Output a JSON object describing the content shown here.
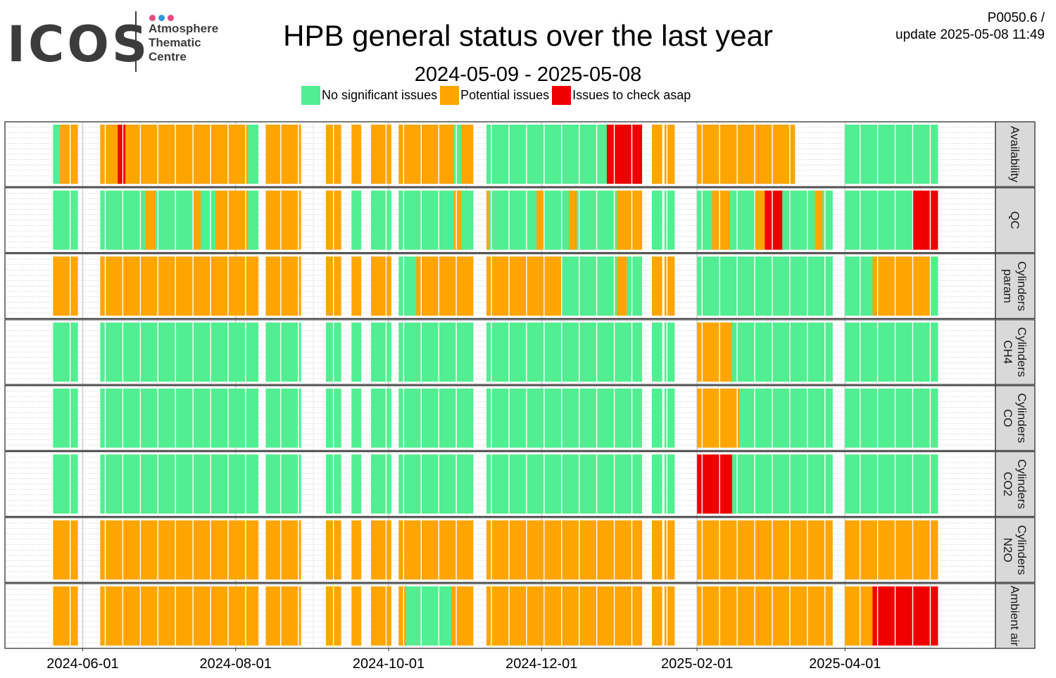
{
  "logo": {
    "wordmark": "ICOS",
    "line1": "Atmosphere",
    "line2": "Thematic",
    "line3": "Centre",
    "dot_colors": [
      "#e94a85",
      "#2d95e0",
      "#e94a85"
    ]
  },
  "header": {
    "title": "HPB general status over the last year",
    "subtitle": "2024-05-09 - 2025-05-08",
    "meta_line1": "P0050.6 /",
    "meta_line2": "update  2025-05-08 11:49"
  },
  "colors": {
    "ok": "#52ee92",
    "warn": "#ffa500",
    "bad": "#ee0000",
    "strip": "#d9d9d9"
  },
  "chart_data": {
    "type": "heatmap",
    "title": "HPB general status over the last year",
    "subtitle": "2024-05-09 - 2025-05-08",
    "date_range": [
      "2024-05-09",
      "2025-05-08"
    ],
    "x_ticks": [
      "2024-06-01",
      "2024-08-01",
      "2024-10-01",
      "2024-12-01",
      "2025-02-01",
      "2025-04-01"
    ],
    "legend": [
      {
        "label": "No significant issues",
        "color": "#52ee92"
      },
      {
        "label": "Potential issues",
        "color": "#ffa500"
      },
      {
        "label": "Issues to check asap",
        "color": "#ee0000"
      }
    ],
    "categories": [
      "Availability",
      "QC",
      "Cylinders param",
      "Cylinders CH4",
      "Cylinders CO",
      "Cylinders CO2",
      "Cylinders N2O",
      "Ambient air"
    ],
    "panel_labels": [
      [
        "Availability"
      ],
      [
        "QC"
      ],
      [
        "Cylinders",
        "param"
      ],
      [
        "Cylinders",
        "CH4"
      ],
      [
        "Cylinders",
        "CO"
      ],
      [
        "Cylinders",
        "CO2"
      ],
      [
        "Cylinders",
        "N2O"
      ],
      [
        "Ambient air"
      ]
    ],
    "status_key": {
      "G": "No significant issues",
      "O": "Potential issues",
      "R": "Issues to check asap"
    },
    "segments": {
      "Availability": [
        [
          "2024-05-20",
          "2024-05-23",
          "G"
        ],
        [
          "2024-05-23",
          "2024-05-30",
          "O"
        ],
        [
          "2024-06-08",
          "2024-06-15",
          "O"
        ],
        [
          "2024-06-15",
          "2024-06-18",
          "R"
        ],
        [
          "2024-06-18",
          "2024-06-22",
          "O"
        ],
        [
          "2024-06-22",
          "2024-07-24",
          "O"
        ],
        [
          "2024-07-24",
          "2024-08-06",
          "O"
        ],
        [
          "2024-08-06",
          "2024-08-10",
          "G"
        ],
        [
          "2024-08-13",
          "2024-08-27",
          "O"
        ],
        [
          "2024-09-06",
          "2024-09-12",
          "O"
        ],
        [
          "2024-09-16",
          "2024-09-20",
          "O"
        ],
        [
          "2024-09-24",
          "2024-09-28",
          "O"
        ],
        [
          "2024-09-28",
          "2024-10-02",
          "O"
        ],
        [
          "2024-10-05",
          "2024-10-27",
          "O"
        ],
        [
          "2024-10-27",
          "2024-10-30",
          "G"
        ],
        [
          "2024-10-30",
          "2024-11-04",
          "O"
        ],
        [
          "2024-11-09",
          "2024-11-25",
          "G"
        ],
        [
          "2024-11-25",
          "2024-12-27",
          "G"
        ],
        [
          "2024-12-27",
          "2025-01-10",
          "R"
        ],
        [
          "2025-01-14",
          "2025-01-18",
          "O"
        ],
        [
          "2025-01-19",
          "2025-01-23",
          "O"
        ],
        [
          "2025-02-01",
          "2025-03-12",
          "O"
        ],
        [
          "2025-04-01",
          "2025-05-08",
          "G"
        ]
      ],
      "QC": [
        [
          "2024-05-20",
          "2024-05-23",
          "G"
        ],
        [
          "2024-05-23",
          "2024-05-30",
          "G"
        ],
        [
          "2024-06-08",
          "2024-06-26",
          "G"
        ],
        [
          "2024-06-26",
          "2024-06-30",
          "O"
        ],
        [
          "2024-06-30",
          "2024-07-15",
          "G"
        ],
        [
          "2024-07-15",
          "2024-07-18",
          "O"
        ],
        [
          "2024-07-18",
          "2024-07-24",
          "G"
        ],
        [
          "2024-07-24",
          "2024-08-06",
          "O"
        ],
        [
          "2024-08-06",
          "2024-08-10",
          "G"
        ],
        [
          "2024-08-13",
          "2024-08-27",
          "O"
        ],
        [
          "2024-09-06",
          "2024-09-12",
          "O"
        ],
        [
          "2024-09-16",
          "2024-09-20",
          "G"
        ],
        [
          "2024-09-24",
          "2024-09-28",
          "G"
        ],
        [
          "2024-09-28",
          "2024-10-02",
          "G"
        ],
        [
          "2024-10-05",
          "2024-10-27",
          "G"
        ],
        [
          "2024-10-27",
          "2024-10-30",
          "O"
        ],
        [
          "2024-10-30",
          "2024-11-04",
          "G"
        ],
        [
          "2024-11-09",
          "2024-11-10",
          "O"
        ],
        [
          "2024-11-10",
          "2024-11-29",
          "G"
        ],
        [
          "2024-11-29",
          "2024-12-02",
          "O"
        ],
        [
          "2024-12-02",
          "2024-12-12",
          "G"
        ],
        [
          "2024-12-12",
          "2024-12-15",
          "O"
        ],
        [
          "2024-12-15",
          "2024-12-31",
          "G"
        ],
        [
          "2024-12-31",
          "2025-01-10",
          "O"
        ],
        [
          "2025-01-14",
          "2025-01-18",
          "G"
        ],
        [
          "2025-01-19",
          "2025-01-23",
          "G"
        ],
        [
          "2025-02-01",
          "2025-02-07",
          "G"
        ],
        [
          "2025-02-07",
          "2025-02-14",
          "O"
        ],
        [
          "2025-02-14",
          "2025-02-24",
          "G"
        ],
        [
          "2025-02-24",
          "2025-02-28",
          "O"
        ],
        [
          "2025-02-28",
          "2025-03-07",
          "R"
        ],
        [
          "2025-03-07",
          "2025-03-20",
          "G"
        ],
        [
          "2025-03-20",
          "2025-03-23",
          "O"
        ],
        [
          "2025-03-23",
          "2025-03-27",
          "G"
        ],
        [
          "2025-04-01",
          "2025-04-28",
          "G"
        ],
        [
          "2025-04-28",
          "2025-05-08",
          "R"
        ]
      ],
      "Cylinders param": [
        [
          "2024-05-20",
          "2024-05-23",
          "O"
        ],
        [
          "2024-05-23",
          "2024-05-30",
          "O"
        ],
        [
          "2024-06-08",
          "2024-07-24",
          "O"
        ],
        [
          "2024-07-24",
          "2024-08-06",
          "O"
        ],
        [
          "2024-08-06",
          "2024-08-10",
          "O"
        ],
        [
          "2024-08-13",
          "2024-08-27",
          "O"
        ],
        [
          "2024-09-06",
          "2024-09-12",
          "O"
        ],
        [
          "2024-09-16",
          "2024-09-20",
          "O"
        ],
        [
          "2024-09-24",
          "2024-09-28",
          "O"
        ],
        [
          "2024-09-28",
          "2024-10-02",
          "O"
        ],
        [
          "2024-10-05",
          "2024-10-12",
          "G"
        ],
        [
          "2024-10-12",
          "2024-11-04",
          "O"
        ],
        [
          "2024-11-09",
          "2024-12-09",
          "O"
        ],
        [
          "2024-12-09",
          "2024-12-31",
          "G"
        ],
        [
          "2024-12-31",
          "2025-01-04",
          "O"
        ],
        [
          "2025-01-04",
          "2025-01-10",
          "G"
        ],
        [
          "2025-01-14",
          "2025-01-18",
          "O"
        ],
        [
          "2025-01-19",
          "2025-01-23",
          "O"
        ],
        [
          "2025-02-01",
          "2025-03-27",
          "G"
        ],
        [
          "2025-04-01",
          "2025-04-12",
          "G"
        ],
        [
          "2025-04-12",
          "2025-05-05",
          "O"
        ],
        [
          "2025-05-05",
          "2025-05-08",
          "G"
        ]
      ],
      "Cylinders CH4": [
        [
          "2024-05-20",
          "2024-05-23",
          "G"
        ],
        [
          "2024-05-23",
          "2024-05-30",
          "G"
        ],
        [
          "2024-06-08",
          "2024-07-24",
          "G"
        ],
        [
          "2024-07-24",
          "2024-08-06",
          "G"
        ],
        [
          "2024-08-06",
          "2024-08-10",
          "G"
        ],
        [
          "2024-08-13",
          "2024-08-27",
          "G"
        ],
        [
          "2024-09-06",
          "2024-09-12",
          "G"
        ],
        [
          "2024-09-16",
          "2024-09-20",
          "G"
        ],
        [
          "2024-09-24",
          "2024-09-28",
          "G"
        ],
        [
          "2024-09-28",
          "2024-10-02",
          "G"
        ],
        [
          "2024-10-05",
          "2024-11-04",
          "G"
        ],
        [
          "2024-11-09",
          "2025-01-10",
          "G"
        ],
        [
          "2025-01-14",
          "2025-01-18",
          "G"
        ],
        [
          "2025-01-19",
          "2025-01-23",
          "G"
        ],
        [
          "2025-02-01",
          "2025-02-15",
          "O"
        ],
        [
          "2025-02-15",
          "2025-03-27",
          "G"
        ],
        [
          "2025-04-01",
          "2025-05-08",
          "G"
        ]
      ],
      "Cylinders CO": [
        [
          "2024-05-20",
          "2024-05-23",
          "G"
        ],
        [
          "2024-05-23",
          "2024-05-30",
          "G"
        ],
        [
          "2024-06-08",
          "2024-07-24",
          "G"
        ],
        [
          "2024-07-24",
          "2024-08-06",
          "G"
        ],
        [
          "2024-08-06",
          "2024-08-10",
          "G"
        ],
        [
          "2024-08-13",
          "2024-08-27",
          "G"
        ],
        [
          "2024-09-06",
          "2024-09-12",
          "G"
        ],
        [
          "2024-09-16",
          "2024-09-20",
          "G"
        ],
        [
          "2024-09-24",
          "2024-09-28",
          "G"
        ],
        [
          "2024-09-28",
          "2024-10-02",
          "G"
        ],
        [
          "2024-10-05",
          "2024-11-04",
          "G"
        ],
        [
          "2024-11-09",
          "2025-01-10",
          "G"
        ],
        [
          "2025-01-14",
          "2025-01-18",
          "G"
        ],
        [
          "2025-01-19",
          "2025-01-23",
          "G"
        ],
        [
          "2025-02-01",
          "2025-02-18",
          "O"
        ],
        [
          "2025-02-18",
          "2025-03-27",
          "G"
        ],
        [
          "2025-04-01",
          "2025-05-08",
          "G"
        ]
      ],
      "Cylinders CO2": [
        [
          "2024-05-20",
          "2024-05-23",
          "G"
        ],
        [
          "2024-05-23",
          "2024-05-30",
          "G"
        ],
        [
          "2024-06-08",
          "2024-07-24",
          "G"
        ],
        [
          "2024-07-24",
          "2024-08-06",
          "G"
        ],
        [
          "2024-08-06",
          "2024-08-10",
          "G"
        ],
        [
          "2024-08-13",
          "2024-08-27",
          "G"
        ],
        [
          "2024-09-06",
          "2024-09-12",
          "G"
        ],
        [
          "2024-09-16",
          "2024-09-20",
          "G"
        ],
        [
          "2024-09-24",
          "2024-09-28",
          "G"
        ],
        [
          "2024-09-28",
          "2024-10-02",
          "G"
        ],
        [
          "2024-10-05",
          "2024-11-04",
          "G"
        ],
        [
          "2024-11-09",
          "2025-01-10",
          "G"
        ],
        [
          "2025-01-14",
          "2025-01-18",
          "G"
        ],
        [
          "2025-01-19",
          "2025-01-23",
          "G"
        ],
        [
          "2025-02-01",
          "2025-02-15",
          "R"
        ],
        [
          "2025-02-15",
          "2025-03-27",
          "G"
        ],
        [
          "2025-04-01",
          "2025-05-08",
          "G"
        ]
      ],
      "Cylinders N2O": [
        [
          "2024-05-20",
          "2024-05-23",
          "O"
        ],
        [
          "2024-05-23",
          "2024-05-30",
          "O"
        ],
        [
          "2024-06-08",
          "2024-07-24",
          "O"
        ],
        [
          "2024-07-24",
          "2024-08-06",
          "O"
        ],
        [
          "2024-08-06",
          "2024-08-10",
          "O"
        ],
        [
          "2024-08-13",
          "2024-08-27",
          "O"
        ],
        [
          "2024-09-06",
          "2024-09-12",
          "O"
        ],
        [
          "2024-09-16",
          "2024-09-20",
          "O"
        ],
        [
          "2024-09-24",
          "2024-09-28",
          "O"
        ],
        [
          "2024-09-28",
          "2024-10-02",
          "O"
        ],
        [
          "2024-10-05",
          "2024-11-04",
          "O"
        ],
        [
          "2024-11-09",
          "2025-01-10",
          "O"
        ],
        [
          "2025-01-14",
          "2025-01-18",
          "O"
        ],
        [
          "2025-01-19",
          "2025-01-23",
          "O"
        ],
        [
          "2025-02-01",
          "2025-03-27",
          "O"
        ],
        [
          "2025-04-01",
          "2025-05-08",
          "O"
        ]
      ],
      "Ambient air": [
        [
          "2024-05-20",
          "2024-05-23",
          "O"
        ],
        [
          "2024-05-23",
          "2024-05-30",
          "O"
        ],
        [
          "2024-06-08",
          "2024-07-24",
          "O"
        ],
        [
          "2024-07-24",
          "2024-08-06",
          "O"
        ],
        [
          "2024-08-06",
          "2024-08-10",
          "O"
        ],
        [
          "2024-08-13",
          "2024-08-27",
          "O"
        ],
        [
          "2024-09-06",
          "2024-09-12",
          "O"
        ],
        [
          "2024-09-16",
          "2024-09-20",
          "O"
        ],
        [
          "2024-09-24",
          "2024-09-28",
          "O"
        ],
        [
          "2024-09-28",
          "2024-10-02",
          "O"
        ],
        [
          "2024-10-05",
          "2024-10-08",
          "O"
        ],
        [
          "2024-10-08",
          "2024-10-26",
          "G"
        ],
        [
          "2024-10-26",
          "2024-11-04",
          "O"
        ],
        [
          "2024-11-09",
          "2025-01-10",
          "O"
        ],
        [
          "2025-01-14",
          "2025-01-18",
          "O"
        ],
        [
          "2025-01-19",
          "2025-01-23",
          "O"
        ],
        [
          "2025-02-01",
          "2025-03-27",
          "O"
        ],
        [
          "2025-04-01",
          "2025-04-12",
          "O"
        ],
        [
          "2025-04-12",
          "2025-05-08",
          "R"
        ]
      ]
    }
  }
}
